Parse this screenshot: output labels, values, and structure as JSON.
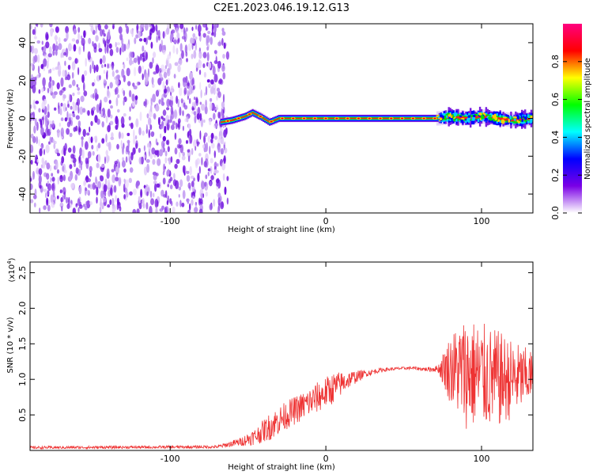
{
  "title": "C2E1.2023.046.19.12.G13",
  "chart_data": [
    {
      "type": "heatmap",
      "xlabel": "Height of straight line (km)",
      "ylabel": "Frequency (Hz)",
      "xlim": [
        -190,
        133
      ],
      "ylim": [
        -50,
        50
      ],
      "xticks": [
        -100,
        0,
        100
      ],
      "yticks": [
        -40,
        -20,
        0,
        20,
        40
      ],
      "noise_region_x": [
        -190,
        -63
      ],
      "signal_trace": {
        "x": [
          -67,
          -60,
          -52,
          -47,
          -42,
          -36,
          -30,
          -20,
          -10,
          0,
          20,
          40,
          60,
          72,
          80,
          90,
          100,
          110,
          120,
          133
        ],
        "frequency": [
          -2,
          -1,
          1,
          3,
          1,
          -2,
          0,
          0,
          0,
          0,
          0,
          0,
          0,
          0,
          1,
          0,
          1,
          0,
          -1,
          0
        ]
      },
      "colorbar": {
        "label": "Normalized spectral amplitude",
        "range": [
          0,
          1
        ],
        "ticks": [
          "0.0",
          "0.2",
          "0.4",
          "0.6",
          "0.8"
        ],
        "colors": [
          "#ffffff",
          "#7a00e6",
          "#0000ff",
          "#00ffff",
          "#00ff00",
          "#ffff00",
          "#ff0000",
          "#ff007f"
        ]
      },
      "grid": false
    },
    {
      "type": "line",
      "xlabel": "Height of straight line (km)",
      "ylabel": "SNR (10 * v/v)",
      "yscale_label": "(x10",
      "yscale_exp": "4",
      "xlim": [
        -190,
        133
      ],
      "ylim": [
        0,
        2.65
      ],
      "xticks": [
        -100,
        0,
        100
      ],
      "yticks": [
        "0.5",
        "1.0",
        "1.5",
        "2.0",
        "2.5"
      ],
      "series": [
        {
          "color": "#ee3333",
          "envelope": {
            "x": [
              -190,
              -70,
              -55,
              -45,
              -35,
              -25,
              -15,
              -5,
              5,
              15,
              25,
              35,
              45,
              55,
              65,
              72,
              80,
              90,
              100,
              110,
              120,
              133
            ],
            "mean": [
              0.04,
              0.05,
              0.12,
              0.2,
              0.35,
              0.5,
              0.62,
              0.75,
              0.88,
              1.0,
              1.08,
              1.13,
              1.15,
              1.16,
              1.14,
              1.15,
              1.15,
              1.1,
              1.05,
              1.0,
              1.0,
              1.05
            ],
            "spread": [
              0.02,
              0.02,
              0.06,
              0.12,
              0.2,
              0.2,
              0.2,
              0.22,
              0.22,
              0.12,
              0.05,
              0.03,
              0.02,
              0.02,
              0.03,
              0.05,
              0.5,
              0.8,
              0.75,
              0.7,
              0.55,
              0.35
            ]
          }
        }
      ],
      "grid": false
    }
  ]
}
